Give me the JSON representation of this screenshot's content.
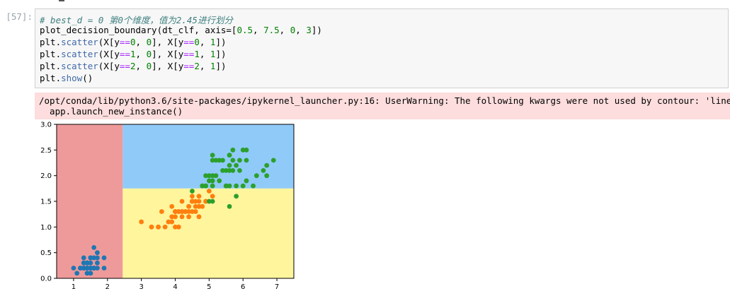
{
  "cell": {
    "prompt": "[57]:",
    "lines": [
      [
        {
          "t": "# best_d = 0 第0个维度，值为2.45进行划分",
          "c": "comment"
        }
      ],
      [
        {
          "t": "plot_decision_boundary(dt_clf, axis=[",
          "c": ""
        },
        {
          "t": "0.5",
          "c": "num"
        },
        {
          "t": ", ",
          "c": ""
        },
        {
          "t": "7.5",
          "c": "num"
        },
        {
          "t": ", ",
          "c": ""
        },
        {
          "t": "0",
          "c": "num"
        },
        {
          "t": ", ",
          "c": ""
        },
        {
          "t": "3",
          "c": "num"
        },
        {
          "t": "])",
          "c": ""
        }
      ],
      [
        {
          "t": "plt.",
          "c": ""
        },
        {
          "t": "scatter",
          "c": "attr"
        },
        {
          "t": "(X[y",
          "c": ""
        },
        {
          "t": "==",
          "c": "op"
        },
        {
          "t": "0",
          "c": "num"
        },
        {
          "t": ", ",
          "c": ""
        },
        {
          "t": "0",
          "c": "num"
        },
        {
          "t": "], X[y",
          "c": ""
        },
        {
          "t": "==",
          "c": "op"
        },
        {
          "t": "0",
          "c": "num"
        },
        {
          "t": ", ",
          "c": ""
        },
        {
          "t": "1",
          "c": "num"
        },
        {
          "t": "])",
          "c": ""
        }
      ],
      [
        {
          "t": "plt.",
          "c": ""
        },
        {
          "t": "scatter",
          "c": "attr"
        },
        {
          "t": "(X[y",
          "c": ""
        },
        {
          "t": "==",
          "c": "op"
        },
        {
          "t": "1",
          "c": "num"
        },
        {
          "t": ", ",
          "c": ""
        },
        {
          "t": "0",
          "c": "num"
        },
        {
          "t": "], X[y",
          "c": ""
        },
        {
          "t": "==",
          "c": "op"
        },
        {
          "t": "1",
          "c": "num"
        },
        {
          "t": ", ",
          "c": ""
        },
        {
          "t": "1",
          "c": "num"
        },
        {
          "t": "])",
          "c": ""
        }
      ],
      [
        {
          "t": "plt.",
          "c": ""
        },
        {
          "t": "scatter",
          "c": "attr"
        },
        {
          "t": "(X[y",
          "c": ""
        },
        {
          "t": "==",
          "c": "op"
        },
        {
          "t": "2",
          "c": "num"
        },
        {
          "t": ", ",
          "c": ""
        },
        {
          "t": "0",
          "c": "num"
        },
        {
          "t": "], X[y",
          "c": ""
        },
        {
          "t": "==",
          "c": "op"
        },
        {
          "t": "2",
          "c": "num"
        },
        {
          "t": ", ",
          "c": ""
        },
        {
          "t": "1",
          "c": "num"
        },
        {
          "t": "])",
          "c": ""
        }
      ],
      [
        {
          "t": "plt.",
          "c": ""
        },
        {
          "t": "show",
          "c": "attr"
        },
        {
          "t": "()",
          "c": ""
        }
      ]
    ]
  },
  "stderr": {
    "line1": "/opt/conda/lib/python3.6/site-packages/ipykernel_launcher.py:16: UserWarning: The following kwargs were not used by contour: 'linewidth'",
    "line2": "  app.launch_new_instance()"
  },
  "chart_data": {
    "type": "scatter",
    "xlim": [
      0.5,
      7.5
    ],
    "ylim": [
      0,
      3
    ],
    "xticks": [
      "1",
      "2",
      "3",
      "4",
      "5",
      "6",
      "7"
    ],
    "yticks": [
      "0.0",
      "0.5",
      "1.0",
      "1.5",
      "2.0",
      "2.5",
      "3.0"
    ],
    "regions": [
      {
        "name": "class-0-region",
        "x": [
          0.5,
          2.45
        ],
        "y": [
          0,
          3
        ],
        "color": "#ef9a9a"
      },
      {
        "name": "class-2-region",
        "x": [
          2.45,
          7.5
        ],
        "y": [
          1.75,
          3
        ],
        "color": "#90caf9"
      },
      {
        "name": "class-1-region",
        "x": [
          2.45,
          7.5
        ],
        "y": [
          0,
          1.75
        ],
        "color": "#fff59d"
      }
    ],
    "series": [
      {
        "color": "#1f77b4",
        "points": [
          [
            1.4,
            0.2
          ],
          [
            1.4,
            0.2
          ],
          [
            1.3,
            0.2
          ],
          [
            1.5,
            0.2
          ],
          [
            1.4,
            0.2
          ],
          [
            1.7,
            0.4
          ],
          [
            1.4,
            0.3
          ],
          [
            1.5,
            0.2
          ],
          [
            1.4,
            0.2
          ],
          [
            1.5,
            0.1
          ],
          [
            1.5,
            0.2
          ],
          [
            1.6,
            0.2
          ],
          [
            1.4,
            0.1
          ],
          [
            1.1,
            0.1
          ],
          [
            1.2,
            0.2
          ],
          [
            1.5,
            0.4
          ],
          [
            1.3,
            0.4
          ],
          [
            1.4,
            0.3
          ],
          [
            1.7,
            0.3
          ],
          [
            1.5,
            0.3
          ],
          [
            1.7,
            0.2
          ],
          [
            1.5,
            0.4
          ],
          [
            1.0,
            0.2
          ],
          [
            1.7,
            0.5
          ],
          [
            1.9,
            0.2
          ],
          [
            1.6,
            0.2
          ],
          [
            1.6,
            0.4
          ],
          [
            1.5,
            0.2
          ],
          [
            1.4,
            0.2
          ],
          [
            1.6,
            0.2
          ],
          [
            1.6,
            0.2
          ],
          [
            1.5,
            0.4
          ],
          [
            1.5,
            0.1
          ],
          [
            1.4,
            0.2
          ],
          [
            1.5,
            0.2
          ],
          [
            1.2,
            0.2
          ],
          [
            1.3,
            0.2
          ],
          [
            1.4,
            0.1
          ],
          [
            1.3,
            0.2
          ],
          [
            1.5,
            0.2
          ],
          [
            1.3,
            0.3
          ],
          [
            1.3,
            0.3
          ],
          [
            1.3,
            0.2
          ],
          [
            1.6,
            0.6
          ],
          [
            1.9,
            0.4
          ],
          [
            1.4,
            0.3
          ],
          [
            1.6,
            0.2
          ],
          [
            1.4,
            0.2
          ],
          [
            1.5,
            0.2
          ],
          [
            1.4,
            0.2
          ]
        ]
      },
      {
        "color": "#ff7f0e",
        "points": [
          [
            4.7,
            1.4
          ],
          [
            4.5,
            1.5
          ],
          [
            4.9,
            1.5
          ],
          [
            4.0,
            1.3
          ],
          [
            4.6,
            1.5
          ],
          [
            4.5,
            1.3
          ],
          [
            4.7,
            1.6
          ],
          [
            3.3,
            1.0
          ],
          [
            4.6,
            1.3
          ],
          [
            3.9,
            1.4
          ],
          [
            3.5,
            1.0
          ],
          [
            4.2,
            1.5
          ],
          [
            4.0,
            1.0
          ],
          [
            4.7,
            1.4
          ],
          [
            3.6,
            1.3
          ],
          [
            4.4,
            1.4
          ],
          [
            4.5,
            1.5
          ],
          [
            4.1,
            1.0
          ],
          [
            4.5,
            1.5
          ],
          [
            3.9,
            1.1
          ],
          [
            4.8,
            1.8
          ],
          [
            4.0,
            1.3
          ],
          [
            4.9,
            1.5
          ],
          [
            4.7,
            1.2
          ],
          [
            4.3,
            1.3
          ],
          [
            4.4,
            1.4
          ],
          [
            4.8,
            1.4
          ],
          [
            5.0,
            1.7
          ],
          [
            4.5,
            1.5
          ],
          [
            3.5,
            1.0
          ],
          [
            3.8,
            1.1
          ],
          [
            3.7,
            1.0
          ],
          [
            3.9,
            1.2
          ],
          [
            5.1,
            1.6
          ],
          [
            4.5,
            1.5
          ],
          [
            4.5,
            1.6
          ],
          [
            4.7,
            1.5
          ],
          [
            4.4,
            1.3
          ],
          [
            4.1,
            1.3
          ],
          [
            4.0,
            1.3
          ],
          [
            4.4,
            1.2
          ],
          [
            4.6,
            1.4
          ],
          [
            4.0,
            1.2
          ],
          [
            3.3,
            1.0
          ],
          [
            4.2,
            1.3
          ],
          [
            4.2,
            1.2
          ],
          [
            4.2,
            1.3
          ],
          [
            4.3,
            1.3
          ],
          [
            3.0,
            1.1
          ],
          [
            4.1,
            1.3
          ]
        ]
      },
      {
        "color": "#2ca02c",
        "points": [
          [
            6.0,
            2.5
          ],
          [
            5.1,
            1.9
          ],
          [
            5.9,
            2.1
          ],
          [
            5.6,
            1.8
          ],
          [
            5.8,
            2.2
          ],
          [
            6.6,
            2.1
          ],
          [
            4.5,
            1.7
          ],
          [
            6.3,
            1.8
          ],
          [
            5.8,
            1.8
          ],
          [
            6.1,
            2.5
          ],
          [
            5.1,
            2.0
          ],
          [
            5.3,
            1.9
          ],
          [
            5.5,
            2.1
          ],
          [
            5.0,
            2.0
          ],
          [
            5.1,
            2.4
          ],
          [
            5.3,
            2.3
          ],
          [
            5.5,
            1.8
          ],
          [
            6.7,
            2.2
          ],
          [
            6.9,
            2.3
          ],
          [
            5.0,
            1.5
          ],
          [
            5.7,
            2.3
          ],
          [
            4.9,
            2.0
          ],
          [
            6.7,
            2.0
          ],
          [
            4.9,
            1.8
          ],
          [
            5.7,
            2.1
          ],
          [
            6.0,
            1.8
          ],
          [
            4.8,
            1.8
          ],
          [
            4.9,
            1.8
          ],
          [
            5.6,
            2.1
          ],
          [
            5.8,
            1.6
          ],
          [
            6.1,
            1.9
          ],
          [
            6.4,
            2.0
          ],
          [
            5.6,
            2.2
          ],
          [
            5.1,
            1.5
          ],
          [
            5.6,
            1.4
          ],
          [
            6.1,
            2.3
          ],
          [
            5.6,
            2.4
          ],
          [
            5.5,
            1.8
          ],
          [
            4.8,
            1.8
          ],
          [
            5.4,
            2.1
          ],
          [
            5.6,
            2.4
          ],
          [
            5.1,
            2.3
          ],
          [
            5.1,
            1.9
          ],
          [
            5.9,
            2.3
          ],
          [
            5.7,
            2.5
          ],
          [
            5.2,
            2.3
          ],
          [
            5.0,
            1.9
          ],
          [
            5.2,
            2.0
          ],
          [
            5.4,
            2.3
          ],
          [
            5.1,
            1.8
          ]
        ]
      }
    ]
  }
}
